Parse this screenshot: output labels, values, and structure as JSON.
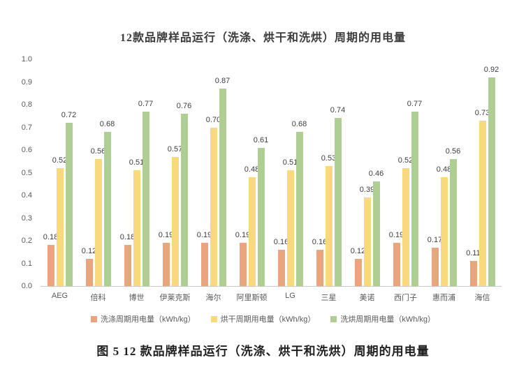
{
  "title": "12款品牌样品运行（洗涤、烘干和洗烘）周期的用电量",
  "caption": "图 5 12 款品牌样品运行（洗涤、烘干和洗烘）周期的用电量",
  "colors": {
    "wash": "#E9A57E",
    "dry": "#F8D97E",
    "washdry": "#AFCE94",
    "axis_text": "#595959",
    "value_text": "#3d3d3d",
    "axis_line": "#c9c9c9"
  },
  "chart_data": {
    "type": "bar",
    "title": "12款品牌样品运行（洗涤、烘干和洗烘）周期的用电量",
    "categories": [
      "AEG",
      "倍科",
      "博世",
      "伊莱克斯",
      "海尔",
      "阿里斯顿",
      "LG",
      "三星",
      "美诺",
      "西门子",
      "惠而浦",
      "海信"
    ],
    "series": [
      {
        "name": "洗涤周期用电量（kWh/kg）",
        "key": "wash",
        "color": "#E9A57E",
        "values": [
          0.18,
          0.12,
          0.18,
          0.19,
          0.19,
          0.19,
          0.16,
          0.16,
          0.12,
          0.19,
          0.17,
          0.11
        ]
      },
      {
        "name": "烘干周期用电量（kWh/kg）",
        "key": "dry",
        "color": "#F8D97E",
        "values": [
          0.52,
          0.56,
          0.51,
          0.57,
          0.7,
          0.48,
          0.51,
          0.53,
          0.39,
          0.52,
          0.48,
          0.73
        ]
      },
      {
        "name": "洗烘周期用电量（kWh/kg）",
        "key": "washdry",
        "color": "#AFCE94",
        "values": [
          0.72,
          0.68,
          0.77,
          0.76,
          0.87,
          0.61,
          0.68,
          0.74,
          0.46,
          0.77,
          0.56,
          0.92
        ]
      }
    ],
    "xlabel": "",
    "ylabel": "",
    "ylim": [
      0.0,
      1.0
    ],
    "yticks": [
      "1.0",
      "0.9",
      "0.8",
      "0.7",
      "0.6",
      "0.5",
      "0.4",
      "0.3",
      "0.2",
      "0.1",
      "0.0"
    ],
    "grid": false,
    "legend_position": "bottom",
    "value_labels": true,
    "value_label_format": "0.00"
  }
}
